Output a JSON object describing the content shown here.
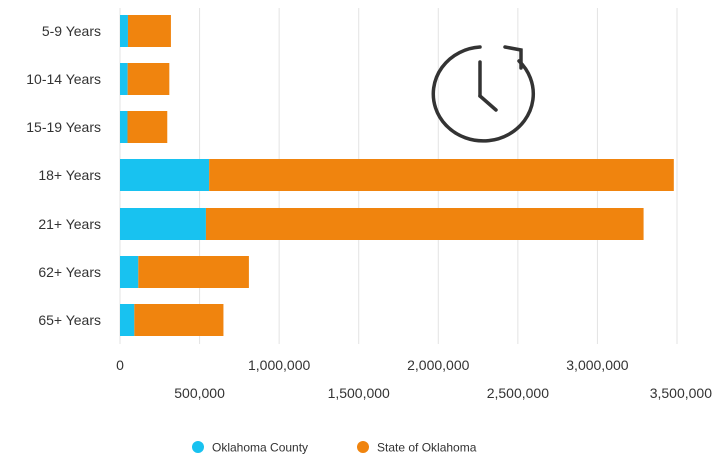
{
  "chart_data": {
    "type": "bar",
    "orientation": "horizontal",
    "stacked": true,
    "categories": [
      "5-9 Years",
      "10-14 Years",
      "15-19 Years",
      "18+ Years",
      "21+ Years",
      "62+ Years",
      "65+ Years"
    ],
    "series": [
      {
        "name": "Oklahoma County",
        "color": "#18C2F0",
        "values": [
          50000,
          48000,
          47000,
          560000,
          540000,
          115000,
          90000
        ]
      },
      {
        "name": "State of Oklahoma",
        "color": "#F0840E",
        "values": [
          270000,
          262000,
          250000,
          2920000,
          2750000,
          695000,
          560000
        ]
      }
    ],
    "xlim": [
      0,
      3500000
    ],
    "xticks_lower": [
      "500,000",
      "1,500,000",
      "2,500,000",
      "3,500,000"
    ],
    "xticks_upper": [
      "0",
      "1,000,000",
      "2,000,000",
      "3,000,000"
    ],
    "grid": true,
    "legend_position": "bottom",
    "icon": "clock-history-icon"
  }
}
